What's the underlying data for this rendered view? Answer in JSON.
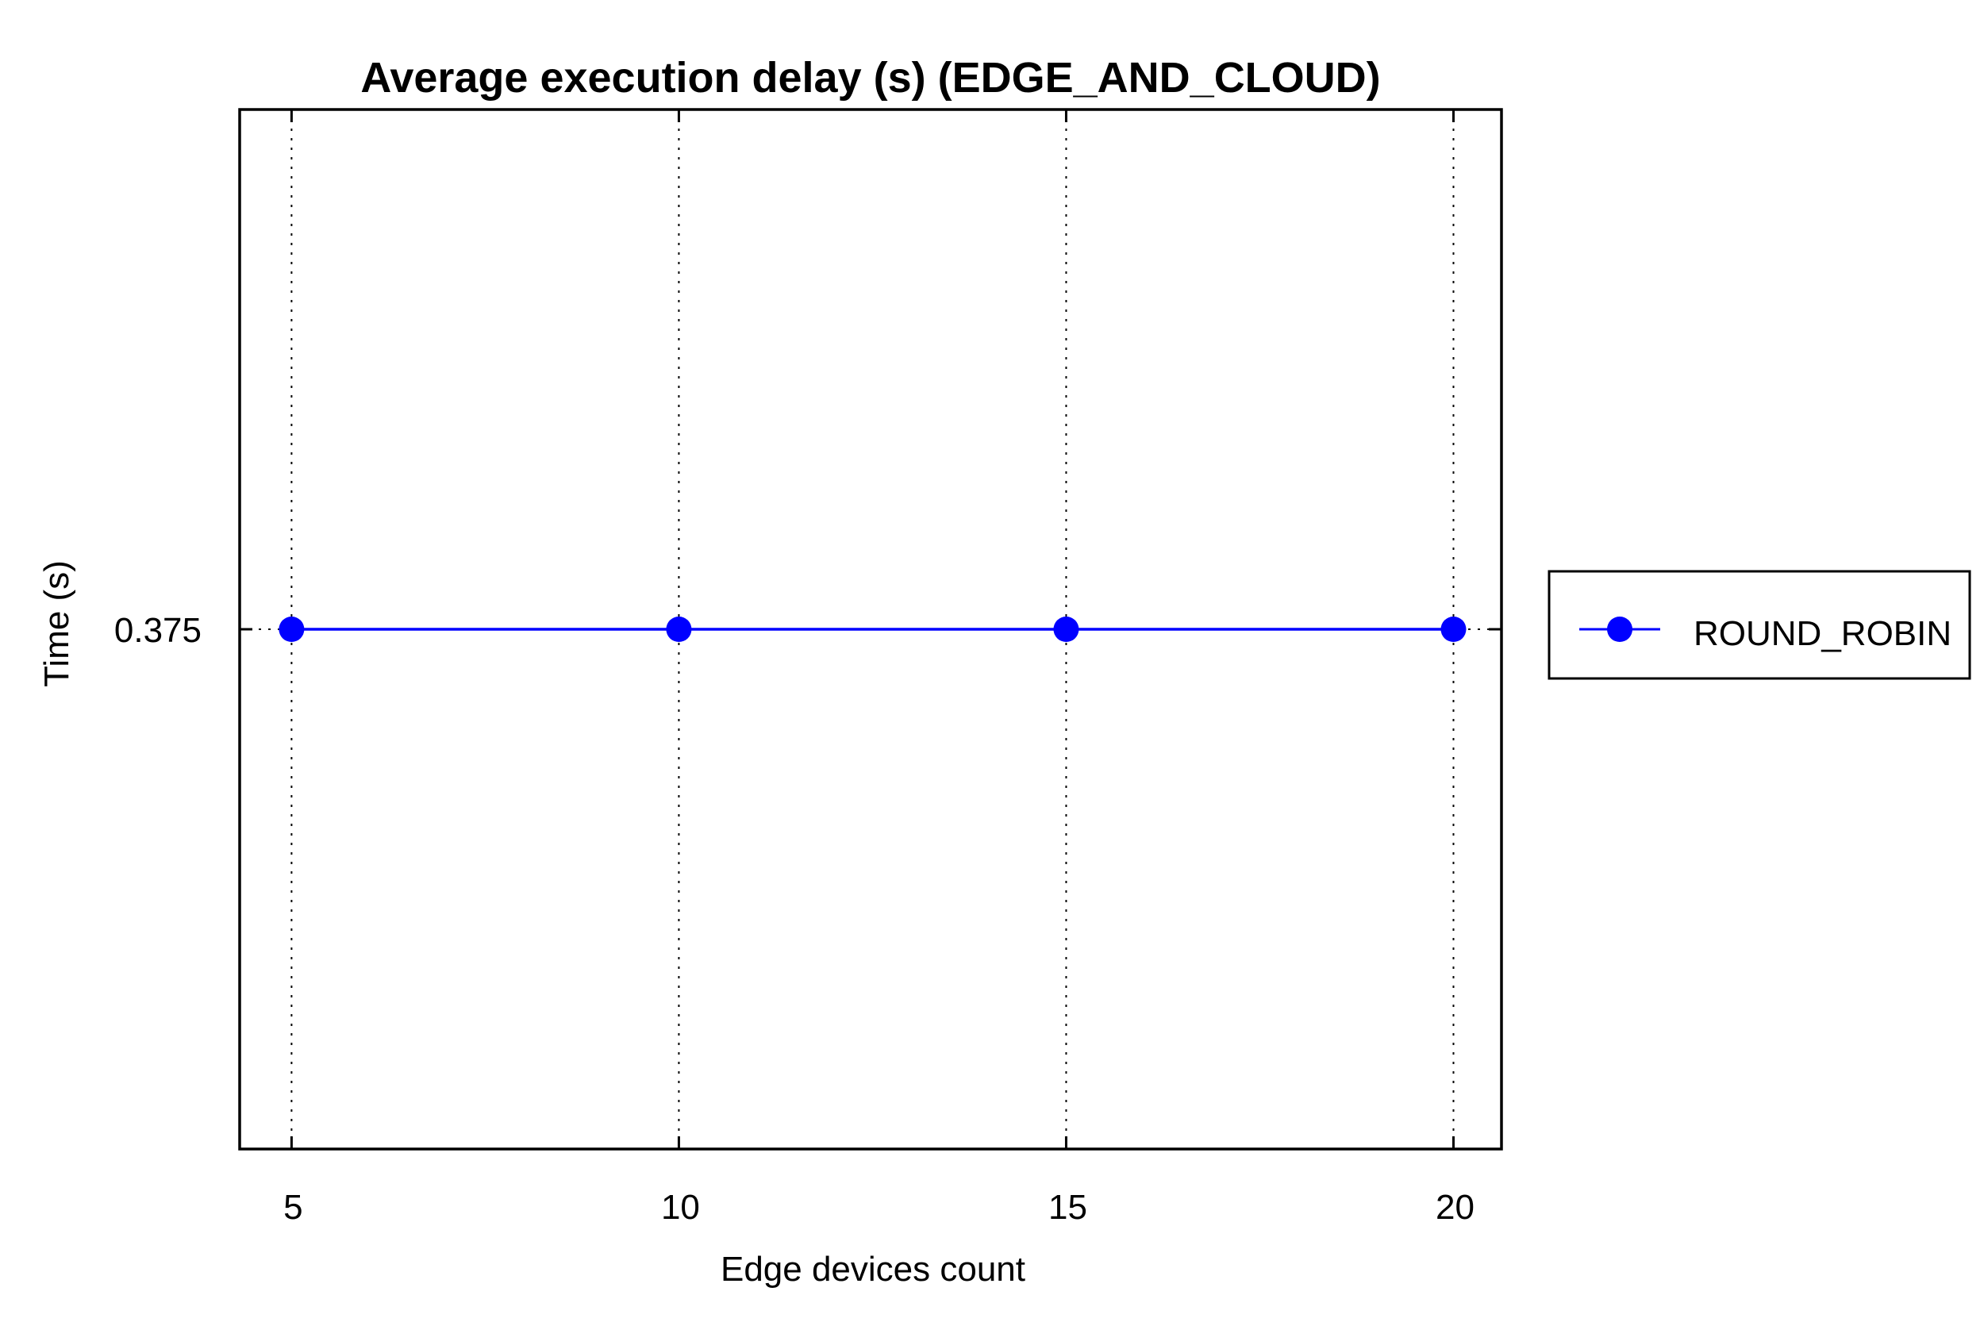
{
  "chart_data": {
    "type": "line",
    "title": "Average execution delay (s) (EDGE_AND_CLOUD)",
    "xlabel": "Edge devices count",
    "ylabel": "Time (s)",
    "x": [
      5,
      10,
      15,
      20
    ],
    "xticks": [
      "5",
      "10",
      "15",
      "20"
    ],
    "yticks": [
      "0.375"
    ],
    "xlim": [
      4.33,
      20.62
    ],
    "ylim": [
      0.365,
      0.385
    ],
    "grid": true,
    "legend_position": "right",
    "series": [
      {
        "name": "ROUND_ROBIN",
        "values": [
          0.375,
          0.375,
          0.375,
          0.375
        ],
        "color": "#0000ff",
        "marker": "circle"
      }
    ]
  }
}
